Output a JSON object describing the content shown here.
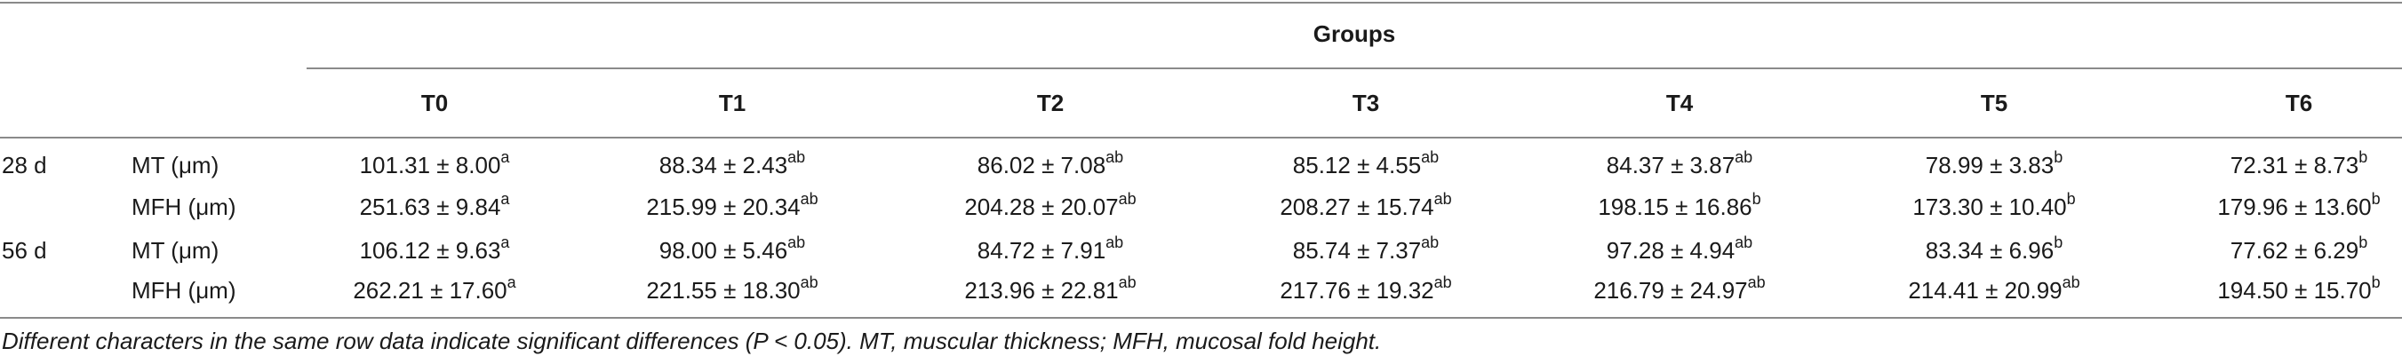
{
  "table": {
    "group_header": "Groups",
    "columns": [
      "T0",
      "T1",
      "T2",
      "T3",
      "T4",
      "T5",
      "T6"
    ],
    "rows": [
      {
        "period": "28 d",
        "measure": "MT (μm)",
        "cells": [
          {
            "value": "101.31 ± 8.00",
            "sup": "a"
          },
          {
            "value": "88.34 ± 2.43",
            "sup": "ab"
          },
          {
            "value": "86.02 ± 7.08",
            "sup": "ab"
          },
          {
            "value": "85.12 ± 4.55",
            "sup": "ab"
          },
          {
            "value": "84.37 ± 3.87",
            "sup": "ab"
          },
          {
            "value": "78.99 ± 3.83",
            "sup": "b"
          },
          {
            "value": "72.31 ± 8.73",
            "sup": "b"
          }
        ]
      },
      {
        "period": "",
        "measure": "MFH (μm)",
        "cells": [
          {
            "value": "251.63 ± 9.84",
            "sup": "a"
          },
          {
            "value": "215.99 ± 20.34",
            "sup": "ab"
          },
          {
            "value": "204.28 ± 20.07",
            "sup": "ab"
          },
          {
            "value": "208.27 ± 15.74",
            "sup": "ab"
          },
          {
            "value": "198.15 ± 16.86",
            "sup": "b"
          },
          {
            "value": "173.30 ± 10.40",
            "sup": "b"
          },
          {
            "value": "179.96 ± 13.60",
            "sup": "b"
          }
        ]
      },
      {
        "period": "56 d",
        "measure": "MT (μm)",
        "cells": [
          {
            "value": "106.12 ± 9.63",
            "sup": "a"
          },
          {
            "value": "98.00 ± 5.46",
            "sup": "ab"
          },
          {
            "value": "84.72 ± 7.91",
            "sup": "ab"
          },
          {
            "value": "85.74 ± 7.37",
            "sup": "ab"
          },
          {
            "value": "97.28 ± 4.94",
            "sup": "ab"
          },
          {
            "value": "83.34 ± 6.96",
            "sup": "b"
          },
          {
            "value": "77.62 ± 6.29",
            "sup": "b"
          }
        ]
      },
      {
        "period": "",
        "measure": "MFH (μm)",
        "cells": [
          {
            "value": "262.21 ± 17.60",
            "sup": "a"
          },
          {
            "value": "221.55 ± 18.30",
            "sup": "ab"
          },
          {
            "value": "213.96 ± 22.81",
            "sup": "ab"
          },
          {
            "value": "217.76 ± 19.32",
            "sup": "ab"
          },
          {
            "value": "216.79 ± 24.97",
            "sup": "ab"
          },
          {
            "value": "214.41 ± 20.99",
            "sup": "ab"
          },
          {
            "value": "194.50 ± 15.70",
            "sup": "b"
          }
        ]
      }
    ],
    "footnote": "Different characters in the same row data indicate significant differences (P < 0.05). MT, muscular thickness; MFH, mucosal fold height."
  }
}
